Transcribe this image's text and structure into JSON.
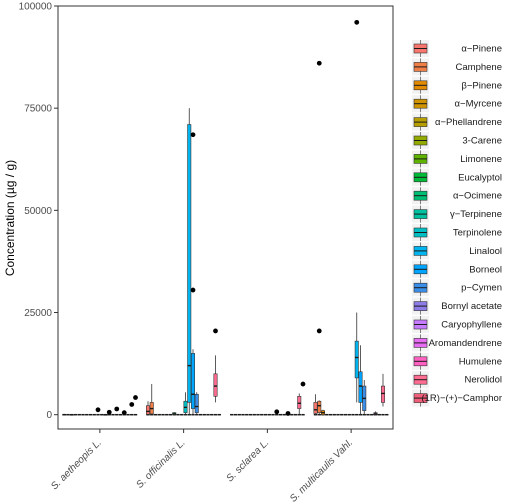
{
  "chart_data": {
    "type": "boxplot",
    "ylabel": "Concentration (µg / g)",
    "xlabel": "",
    "ylim": [
      -3500,
      100000
    ],
    "yticks": [
      0,
      25000,
      50000,
      75000,
      100000
    ],
    "ytick_labels": [
      "0",
      "25000",
      "50000",
      "75000",
      "100000"
    ],
    "grid": false,
    "legend_position": "right",
    "categories": [
      "S. aetheopis L.",
      "S. officinalis L.",
      "S. sclarea L.",
      "S. multicaulis Vahl."
    ],
    "series": [
      {
        "name": "α−Pinene",
        "color": "#F8766D"
      },
      {
        "name": "Camphene",
        "color": "#EF7F46"
      },
      {
        "name": "β−Pinene",
        "color": "#E28A00"
      },
      {
        "name": "α−Myrcene",
        "color": "#D09400"
      },
      {
        "name": "α−Phellandrene",
        "color": "#B79F00"
      },
      {
        "name": "3-Carene",
        "color": "#93AA00"
      },
      {
        "name": "Limonene",
        "color": "#5EB300"
      },
      {
        "name": "Eucalyptol",
        "color": "#00BA38"
      },
      {
        "name": "α−Ocimene",
        "color": "#00BF74"
      },
      {
        "name": "γ−Terpinene",
        "color": "#00C19F"
      },
      {
        "name": "Terpinolene",
        "color": "#00BFC4"
      },
      {
        "name": "Linalool",
        "color": "#00B4F0"
      },
      {
        "name": "Borneol",
        "color": "#00A5FF"
      },
      {
        "name": "p−Cymen",
        "color": "#3B8EE8"
      },
      {
        "name": "Bornyl acetate",
        "color": "#8C7CE6"
      },
      {
        "name": "Caryophyllene",
        "color": "#C77CFF"
      },
      {
        "name": "Aromandendrene",
        "color": "#E76BF3"
      },
      {
        "name": "Humulene",
        "color": "#FF61C3"
      },
      {
        "name": "Nerolidol",
        "color": "#FF6C91"
      },
      {
        "name": "(1R)−(+)−Camphor",
        "color": "#F05E79"
      }
    ],
    "boxes": [
      {
        "group": 0,
        "series": 0,
        "q1": 0,
        "med": 0,
        "q3": 100,
        "lo": 0,
        "hi": 200
      },
      {
        "group": 0,
        "series": 2,
        "q1": 0,
        "med": 0,
        "q3": 50,
        "lo": 0,
        "hi": 100
      },
      {
        "group": 0,
        "series": 11,
        "q1": 0,
        "med": 0,
        "q3": 50,
        "lo": 0,
        "hi": 100
      },
      {
        "group": 1,
        "series": 0,
        "q1": 100,
        "med": 800,
        "q3": 2200,
        "lo": 0,
        "hi": 3300
      },
      {
        "group": 1,
        "series": 1,
        "q1": 200,
        "med": 1500,
        "q3": 3000,
        "lo": 0,
        "hi": 7500
      },
      {
        "group": 1,
        "series": 7,
        "q1": 0,
        "med": 200,
        "q3": 500,
        "lo": 0,
        "hi": 600
      },
      {
        "group": 1,
        "series": 10,
        "q1": 500,
        "med": 1800,
        "q3": 3300,
        "lo": 0,
        "hi": 5500
      },
      {
        "group": 1,
        "series": 11,
        "q1": 3000,
        "med": 12000,
        "q3": 71000,
        "lo": 0,
        "hi": 75000
      },
      {
        "group": 1,
        "series": 12,
        "q1": 1500,
        "med": 5000,
        "q3": 15000,
        "lo": 0,
        "hi": 16000
      },
      {
        "group": 1,
        "series": 13,
        "q1": 500,
        "med": 2000,
        "q3": 5000,
        "lo": 0,
        "hi": 5500
      },
      {
        "group": 1,
        "series": 18,
        "q1": 4500,
        "med": 7000,
        "q3": 10000,
        "lo": 3000,
        "hi": 14500
      },
      {
        "group": 2,
        "series": 18,
        "q1": 1500,
        "med": 2800,
        "q3": 4500,
        "lo": 0,
        "hi": 5200
      },
      {
        "group": 3,
        "series": 0,
        "q1": 300,
        "med": 1200,
        "q3": 3000,
        "lo": 0,
        "hi": 5000
      },
      {
        "group": 3,
        "series": 1,
        "q1": 500,
        "med": 2200,
        "q3": 3300,
        "lo": 0,
        "hi": 3500
      },
      {
        "group": 3,
        "series": 2,
        "q1": 0,
        "med": 500,
        "q3": 1000,
        "lo": 0,
        "hi": 1200
      },
      {
        "group": 3,
        "series": 11,
        "q1": 9000,
        "med": 14000,
        "q3": 18000,
        "lo": 3000,
        "hi": 25000
      },
      {
        "group": 3,
        "series": 12,
        "q1": 3000,
        "med": 7000,
        "q3": 10500,
        "lo": 0,
        "hi": 17000
      },
      {
        "group": 3,
        "series": 13,
        "q1": 1000,
        "med": 4000,
        "q3": 7000,
        "lo": 0,
        "hi": 8500
      },
      {
        "group": 3,
        "series": 16,
        "q1": 0,
        "med": 200,
        "q3": 500,
        "lo": 0,
        "hi": 800
      },
      {
        "group": 3,
        "series": 18,
        "q1": 3000,
        "med": 5200,
        "q3": 7000,
        "lo": 2000,
        "hi": 10000
      }
    ],
    "outliers": [
      {
        "group": 0,
        "series": 9,
        "value": 1200
      },
      {
        "group": 0,
        "series": 12,
        "value": 600
      },
      {
        "group": 0,
        "series": 14,
        "value": 1400
      },
      {
        "group": 0,
        "series": 16,
        "value": 500
      },
      {
        "group": 0,
        "series": 18,
        "value": 2500
      },
      {
        "group": 0,
        "series": 19,
        "value": 4200
      },
      {
        "group": 1,
        "series": 12,
        "value": 68500
      },
      {
        "group": 1,
        "series": 12,
        "value": 30500
      },
      {
        "group": 1,
        "series": 18,
        "value": 20500
      },
      {
        "group": 2,
        "series": 12,
        "value": 700
      },
      {
        "group": 2,
        "series": 15,
        "value": 300
      },
      {
        "group": 2,
        "series": 19,
        "value": 7500
      },
      {
        "group": 3,
        "series": 1,
        "value": 86000
      },
      {
        "group": 3,
        "series": 1,
        "value": 20500
      },
      {
        "group": 3,
        "series": 11,
        "value": 96000
      }
    ],
    "zero_points": [
      {
        "group": 0,
        "series": [
          0,
          1,
          2,
          3,
          4,
          5,
          6,
          7,
          8,
          9,
          10,
          11,
          12,
          13,
          14,
          15,
          16,
          17,
          18,
          19
        ]
      },
      {
        "group": 1,
        "series": [
          0,
          1,
          2,
          3,
          4,
          5,
          6,
          7,
          8,
          9,
          10,
          11,
          12,
          13,
          14,
          15,
          16,
          17,
          18,
          19
        ]
      },
      {
        "group": 2,
        "series": [
          0,
          1,
          2,
          3,
          4,
          5,
          6,
          7,
          8,
          9,
          10,
          11,
          12,
          13,
          14,
          15,
          16,
          17,
          18,
          19
        ]
      },
      {
        "group": 3,
        "series": [
          0,
          1,
          2,
          3,
          4,
          5,
          6,
          7,
          8,
          9,
          10,
          11,
          12,
          13,
          14,
          15,
          16,
          17,
          18,
          19
        ]
      }
    ]
  }
}
